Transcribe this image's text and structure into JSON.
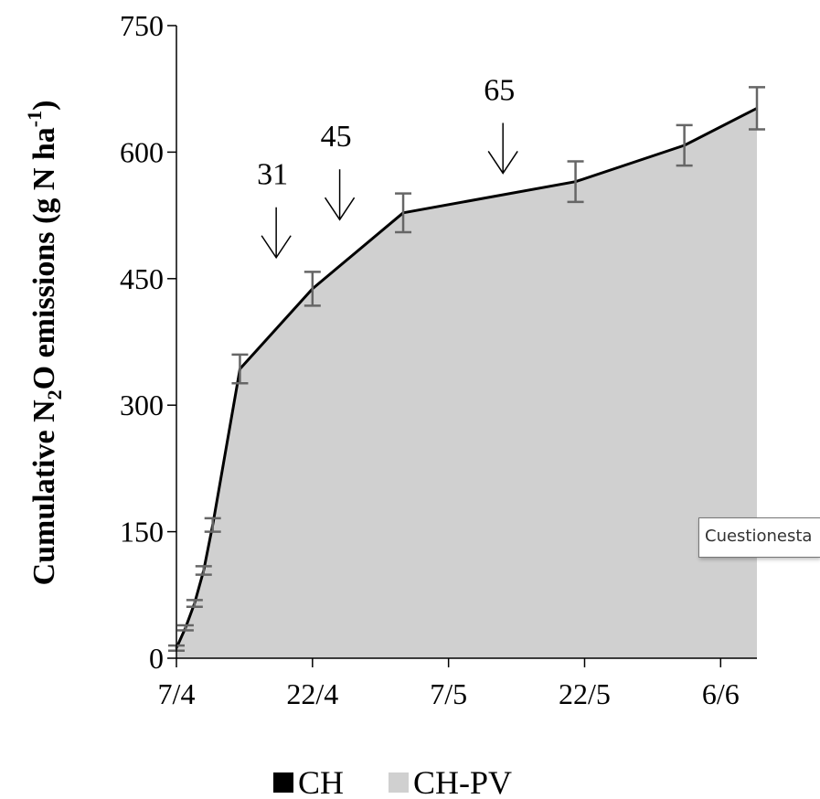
{
  "chart_data": {
    "type": "area",
    "ylabel_parts": {
      "pre": "Cumulative N",
      "sub": "2",
      "mid": "O emissions (g N ha",
      "sup": "-1",
      "post": ")"
    },
    "ylim": [
      0,
      750
    ],
    "yticks": [
      "0",
      "150",
      "300",
      "450",
      "600",
      "750"
    ],
    "xlim": [
      "2013-04-07",
      "2013-06-10"
    ],
    "xtick_values": [
      "2013-04-07",
      "2013-04-22",
      "2013-05-07",
      "2013-05-22",
      "2013-06-06"
    ],
    "xticks": [
      "7/4",
      "22/4",
      "7/5",
      "22/5",
      "6/6"
    ],
    "grid": false,
    "legend_position": "bottom",
    "series": [
      {
        "name": "CH",
        "color": "#000000",
        "points": [
          {
            "x": "2013-04-07",
            "y": 12
          },
          {
            "x": "2013-04-08",
            "y": 36
          },
          {
            "x": "2013-04-09",
            "y": 65
          },
          {
            "x": "2013-04-10",
            "y": 104
          },
          {
            "x": "2013-04-11",
            "y": 158
          },
          {
            "x": "2013-04-14",
            "y": 343
          },
          {
            "x": "2013-04-22",
            "y": 438
          },
          {
            "x": "2013-05-02",
            "y": 528
          },
          {
            "x": "2013-05-21",
            "y": 565
          },
          {
            "x": "2013-06-02",
            "y": 608
          },
          {
            "x": "2013-06-10",
            "y": 652
          }
        ]
      },
      {
        "name": "CH-PV",
        "color": "#d0d0d0",
        "points": [
          {
            "x": "2013-04-07",
            "y": 12
          },
          {
            "x": "2013-04-08",
            "y": 36
          },
          {
            "x": "2013-04-09",
            "y": 65
          },
          {
            "x": "2013-04-10",
            "y": 104
          },
          {
            "x": "2013-04-11",
            "y": 158
          },
          {
            "x": "2013-04-14",
            "y": 343
          },
          {
            "x": "2013-04-22",
            "y": 438
          },
          {
            "x": "2013-05-02",
            "y": 528
          },
          {
            "x": "2013-05-21",
            "y": 565
          },
          {
            "x": "2013-06-02",
            "y": 608
          },
          {
            "x": "2013-06-10",
            "y": 650
          }
        ]
      }
    ],
    "errorbars": [
      {
        "x": "2013-04-07",
        "y": 12,
        "err": 3
      },
      {
        "x": "2013-04-08",
        "y": 36,
        "err": 3
      },
      {
        "x": "2013-04-09",
        "y": 65,
        "err": 4
      },
      {
        "x": "2013-04-10",
        "y": 104,
        "err": 5
      },
      {
        "x": "2013-04-11",
        "y": 158,
        "err": 8
      },
      {
        "x": "2013-04-14",
        "y": 343,
        "err": 17
      },
      {
        "x": "2013-04-22",
        "y": 438,
        "err": 20
      },
      {
        "x": "2013-05-02",
        "y": 528,
        "err": 23
      },
      {
        "x": "2013-05-21",
        "y": 565,
        "err": 24
      },
      {
        "x": "2013-06-02",
        "y": 608,
        "err": 24
      },
      {
        "x": "2013-06-10",
        "y": 652,
        "err": 25
      }
    ],
    "annotations": [
      {
        "text": "31",
        "x": "2013-04-18",
        "y": 475
      },
      {
        "text": "45",
        "x": "2013-04-25",
        "y": 520
      },
      {
        "text": "65",
        "x": "2013-05-13",
        "y": 575
      }
    ]
  },
  "tooltip": {
    "text": "Cuestionesta"
  }
}
